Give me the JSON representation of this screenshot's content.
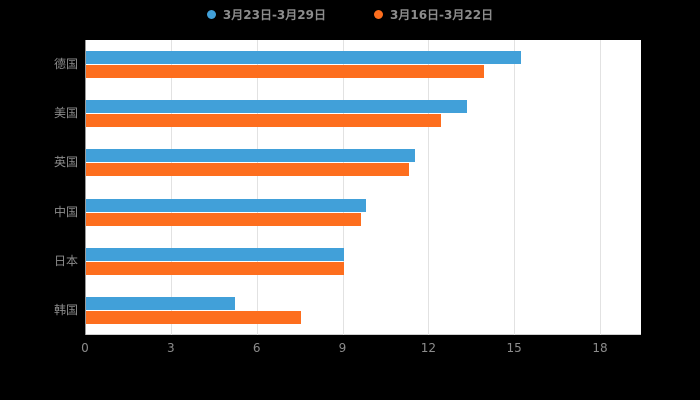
{
  "colors": {
    "background": "#000000",
    "plot_background": "#ffffff",
    "grid": "#e2e2e2",
    "axis_text": "#8c8c8c",
    "series_blue": "#41a0d9",
    "series_orange": "#fd6e1e"
  },
  "chart_data": {
    "type": "bar",
    "orientation": "horizontal",
    "title": "",
    "categories": [
      "德国",
      "美国",
      "英国",
      "中国",
      "日本",
      "韩国"
    ],
    "series": [
      {
        "name": "3月23日-3月29日",
        "color": "#41a0d9",
        "values": [
          15.2,
          13.3,
          11.5,
          9.8,
          9.0,
          5.2
        ]
      },
      {
        "name": "3月16日-3月22日",
        "color": "#fd6e1e",
        "values": [
          13.9,
          12.4,
          11.3,
          9.6,
          9.0,
          7.5
        ]
      }
    ],
    "xlabel": "",
    "ylabel": "",
    "xlim": [
      0,
      18
    ],
    "xticks": [
      0,
      3,
      6,
      9,
      12,
      15,
      18
    ],
    "grid": true,
    "legend_position": "top"
  }
}
